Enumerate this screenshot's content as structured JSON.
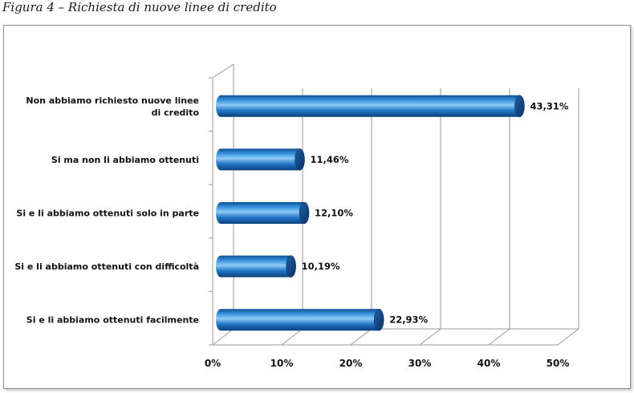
{
  "caption": "Figura 4 – Richiesta di nuove linee di credito",
  "chart_data": {
    "type": "bar",
    "orientation": "horizontal",
    "title": "",
    "xlabel": "",
    "ylabel": "",
    "xlim": [
      0,
      50
    ],
    "x_ticks": [
      "0%",
      "10%",
      "20%",
      "30%",
      "40%",
      "50%"
    ],
    "grid": true,
    "categories": [
      [
        "Non abbiamo richiesto nuove linee",
        "di credito"
      ],
      [
        "Si ma non li abbiamo ottenuti"
      ],
      [
        "Si e li abbiamo ottenuti solo in parte"
      ],
      [
        "Si e li abbiamo ottenuti con difficoltà"
      ],
      [
        "Si e li abbiamo ottenuti facilmente"
      ]
    ],
    "values": [
      43.31,
      11.46,
      12.1,
      10.19,
      22.93
    ],
    "value_labels": [
      "43,31%",
      "11,46%",
      "12,10%",
      "10,19%",
      "22,93%"
    ],
    "bar_color": "#1f78c8"
  }
}
